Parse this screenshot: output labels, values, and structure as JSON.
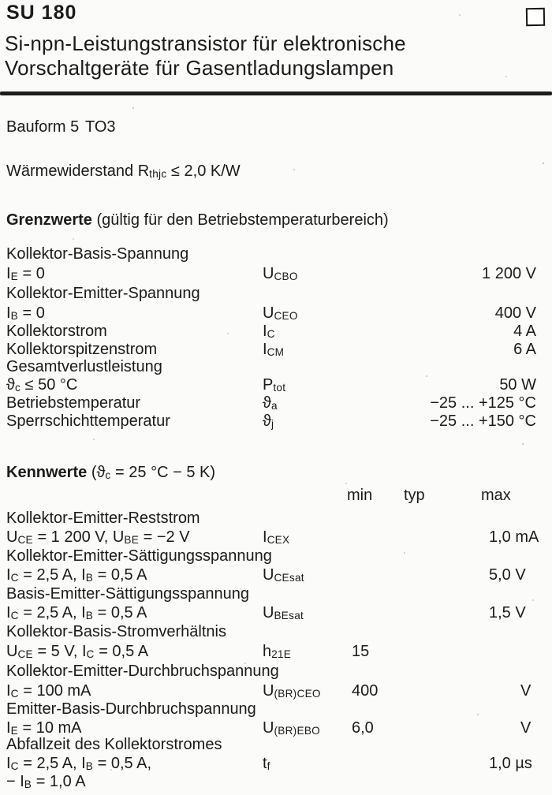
{
  "page": {
    "title": "SU 180",
    "subtitle_line1": "Si-npn-Leistungstransistor für elektronische",
    "subtitle_line2": "Vorschaltgeräte für Gasentladungslampen",
    "corner_marker_icon": "outlined-square"
  },
  "package_line": {
    "label": "Bauform 5",
    "package": "TO3"
  },
  "thermal_line": {
    "rich": [
      "Wärmewiderstand R",
      {
        "sub": "thjc"
      },
      "  ≤  2,0 K/W"
    ]
  },
  "grenzwerte": {
    "heading": "Grenzwerte",
    "heading_note": "(gültig für den Betriebstemperaturbereich)",
    "lines": [
      {
        "name": "Kollektor-Basis-Spannung"
      },
      {
        "cond": [
          "I",
          {
            "sub": "E"
          },
          " = 0"
        ],
        "sym": [
          "U",
          {
            "sub": "CBO"
          }
        ],
        "value": "1 200 V"
      },
      {
        "name": "Kollektor-Emitter-Spannung"
      },
      {
        "cond": [
          "I",
          {
            "sub": "B"
          },
          " = 0"
        ],
        "sym": [
          "U",
          {
            "sub": "CEO"
          }
        ],
        "value": "400 V"
      },
      {
        "name": "Kollektorstrom",
        "sym": [
          "I",
          {
            "sub": "C"
          }
        ],
        "value": "4 A"
      },
      {
        "name": "Kollektorspitzenstrom",
        "sym": [
          "I",
          {
            "sub": "CM"
          }
        ],
        "value": "6 A"
      },
      {
        "name": "Gesamtverlustleistung"
      },
      {
        "cond": [
          "ϑ",
          {
            "sub": "c"
          },
          "  ≤  50 °C"
        ],
        "sym": [
          "P",
          {
            "sub": "tot"
          }
        ],
        "value": "50 W"
      },
      {
        "name": "Betriebstemperatur",
        "sym": [
          "ϑ",
          {
            "sub": "a"
          }
        ],
        "value": "−25 ... +125 °C"
      },
      {
        "name": "Sperrschichttemperatur",
        "sym": [
          "ϑ",
          {
            "sub": "j"
          }
        ],
        "value": "−25 ... +150 °C"
      }
    ]
  },
  "kennwerte": {
    "heading": "Kennwerte",
    "heading_note": [
      "(ϑ",
      {
        "sub": "c"
      },
      " = 25 °C − 5 K)"
    ],
    "col_headers": {
      "min": "min",
      "typ": "typ",
      "max": "max"
    },
    "lines": [
      {
        "name": "Kollektor-Emitter-Reststrom"
      },
      {
        "cond": [
          "U",
          {
            "sub": "CE"
          },
          " = 1 200 V, U",
          {
            "sub": "BE"
          },
          " = −2 V"
        ],
        "sym": [
          "I",
          {
            "sub": "CEX"
          }
        ],
        "max": "1,0 mA"
      },
      {
        "name": "Kollektor-Emitter-Sättigungsspannung"
      },
      {
        "cond": [
          "I",
          {
            "sub": "C"
          },
          " = 2,5 A, I",
          {
            "sub": "B"
          },
          " = 0,5 A"
        ],
        "sym": [
          "U",
          {
            "sub": "CEsat"
          }
        ],
        "max": "5,0 V"
      },
      {
        "name": "Basis-Emitter-Sättigungsspannung"
      },
      {
        "cond": [
          "I",
          {
            "sub": "C"
          },
          " = 2,5 A, I",
          {
            "sub": "B"
          },
          " = 0,5 A"
        ],
        "sym": [
          "U",
          {
            "sub": "BEsat"
          }
        ],
        "max": "1,5 V"
      },
      {
        "name": "Kollektor-Basis-Stromverhältnis"
      },
      {
        "cond": [
          "U",
          {
            "sub": "CE"
          },
          " = 5 V, I",
          {
            "sub": "C"
          },
          " = 0,5 A"
        ],
        "sym": [
          "h",
          {
            "sub": "21E"
          }
        ],
        "min": "15"
      },
      {
        "name": "Kollektor-Emitter-Durchbruchspannung"
      },
      {
        "cond": [
          "I",
          {
            "sub": "C"
          },
          " = 100 mA"
        ],
        "sym": [
          "U",
          {
            "sub": "(BR)CEO"
          }
        ],
        "min": "400",
        "unit": "V"
      },
      {
        "name": "Emitter-Basis-Durchbruchspannung"
      },
      {
        "cond": [
          "I",
          {
            "sub": "E"
          },
          " = 10 mA"
        ],
        "sym": [
          "U",
          {
            "sub": "(BR)EBO"
          }
        ],
        "min": "6,0",
        "unit": "V"
      },
      {
        "name": "Abfallzeit des Kollektorstromes"
      },
      {
        "cond": [
          "I",
          {
            "sub": "C"
          },
          " = 2,5 A, I",
          {
            "sub": "B"
          },
          " = 0,5 A,"
        ],
        "sym": [
          "t",
          {
            "sub": "f"
          }
        ],
        "max": "1,0 µs"
      },
      {
        "cond": [
          "− I",
          {
            "sub": "B"
          },
          " = 1,0 A"
        ]
      }
    ]
  }
}
